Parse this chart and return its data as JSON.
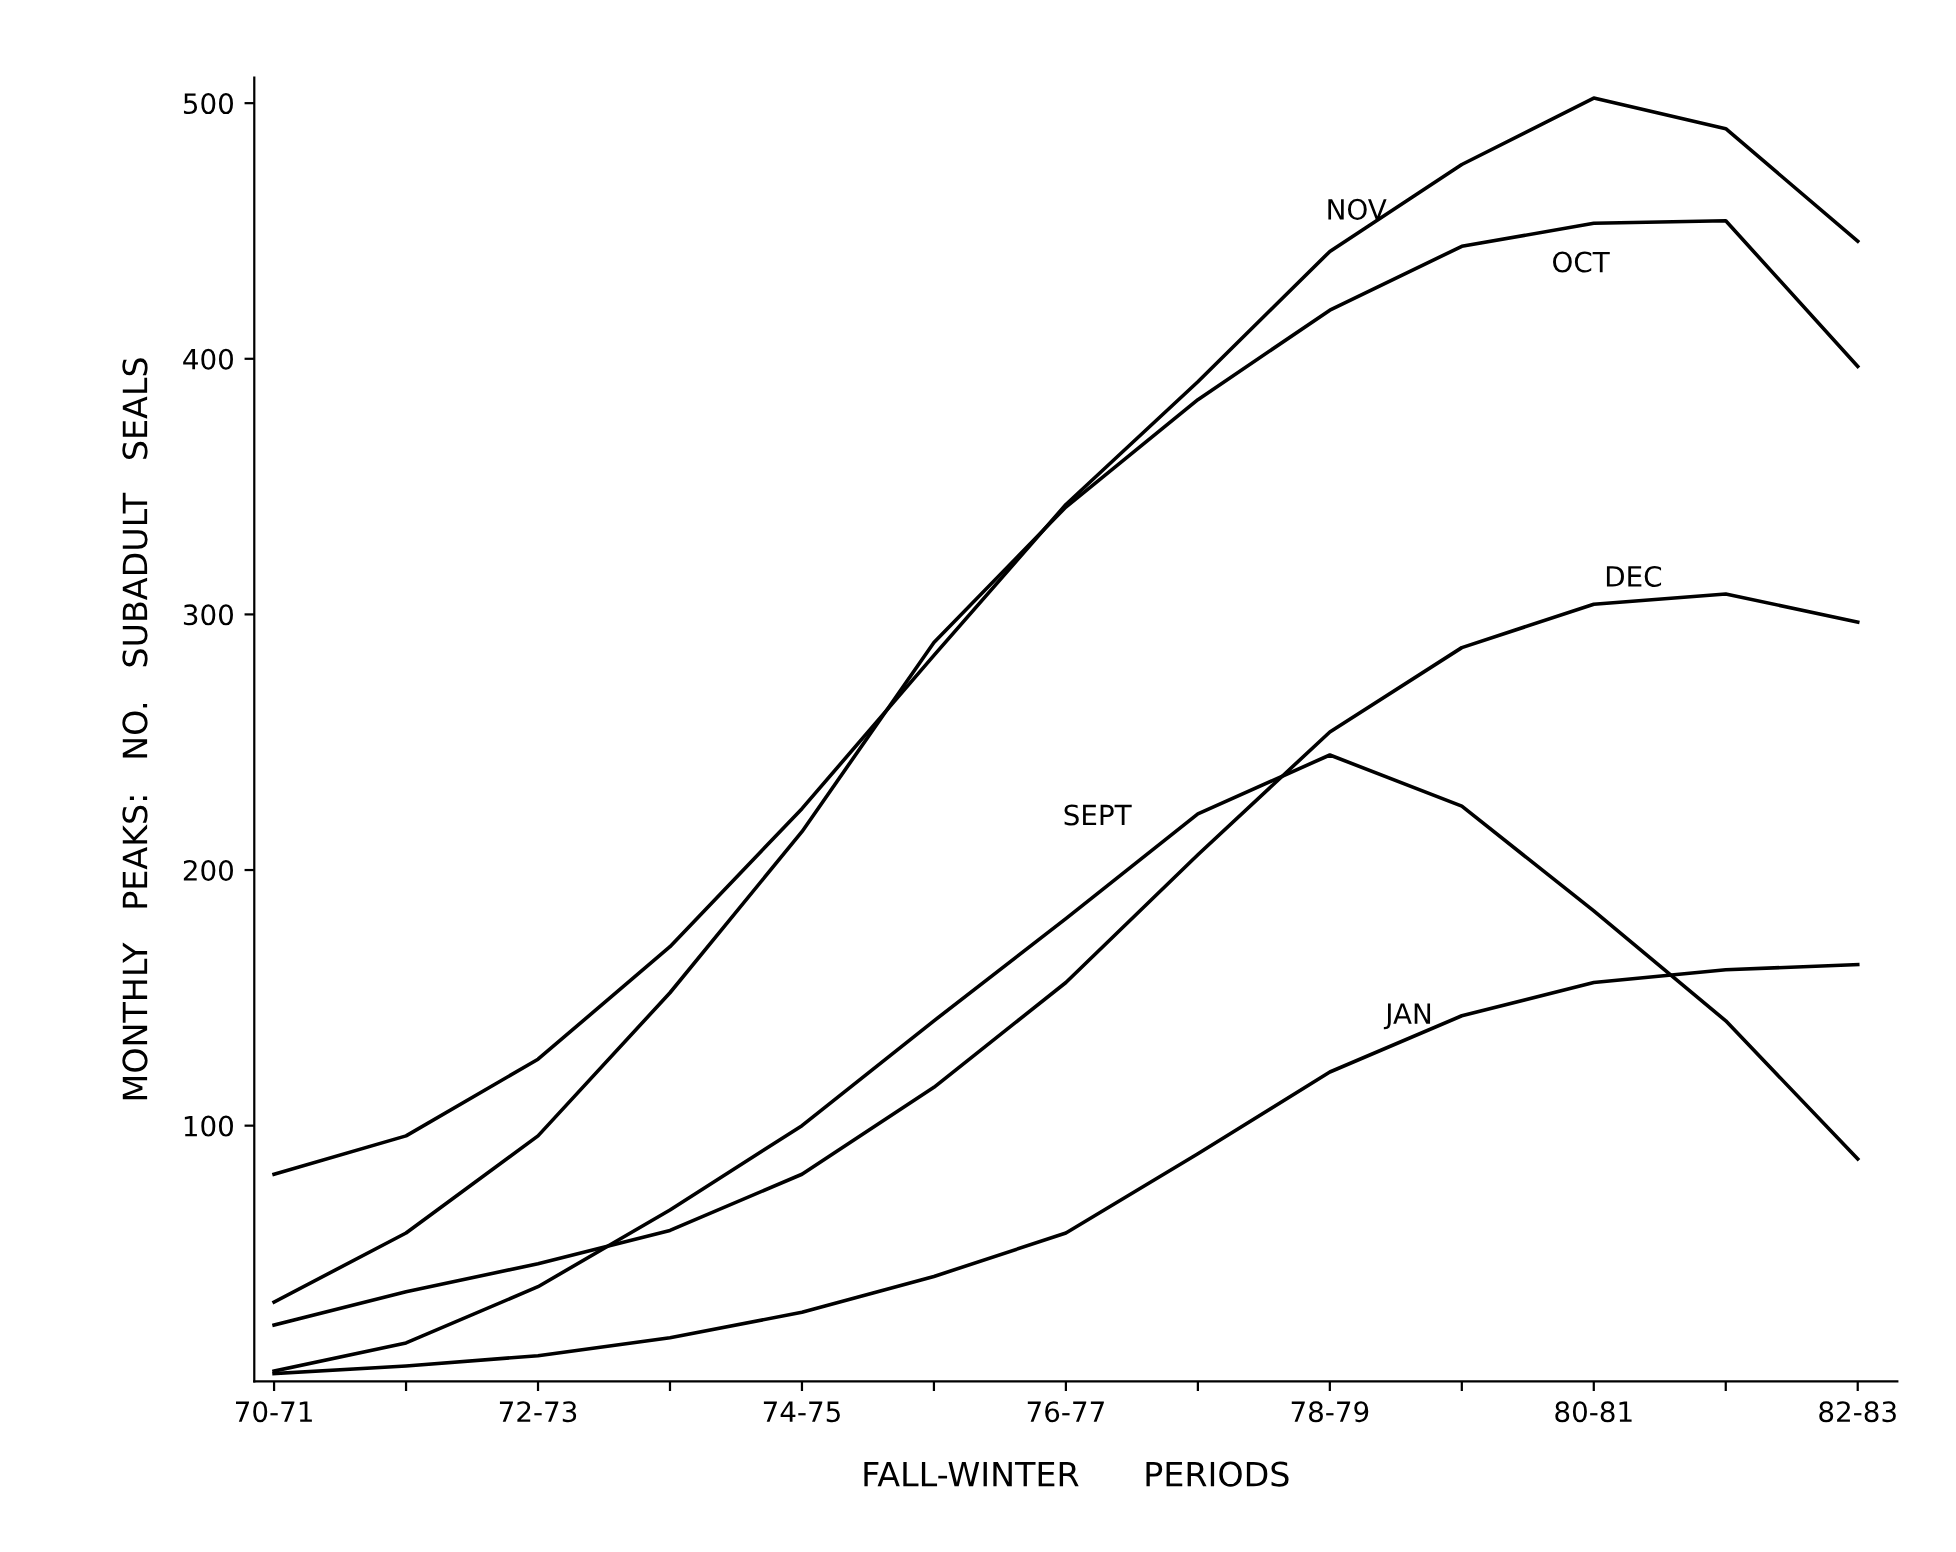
{
  "chart_data": {
    "type": "line",
    "categories": [
      "70-71",
      null,
      "72-73",
      null,
      "74-75",
      null,
      "76-77",
      null,
      "78-79",
      null,
      "80-81",
      null,
      "82-83"
    ],
    "series": [
      {
        "name": "NOV",
        "color": "#000000",
        "values": [
          81,
          96,
          126,
          170,
          224,
          284,
          343,
          391,
          442,
          476,
          502,
          490,
          446
        ]
      },
      {
        "name": "OCT",
        "color": "#000000",
        "values": [
          31,
          58,
          96,
          152,
          215,
          289,
          342,
          384,
          419,
          444,
          453,
          454,
          397
        ]
      },
      {
        "name": "DEC",
        "color": "#000000",
        "values": [
          22,
          35,
          46,
          59,
          81,
          115,
          156,
          206,
          254,
          287,
          304,
          308,
          297
        ]
      },
      {
        "name": "SEPT",
        "color": "#000000",
        "values": [
          4,
          15,
          37,
          67,
          100,
          141,
          181,
          222,
          245,
          225,
          184,
          141,
          87
        ]
      },
      {
        "name": "JAN",
        "color": "#000000",
        "values": [
          3,
          6,
          10,
          17,
          27,
          41,
          58,
          89,
          121,
          143,
          156,
          161,
          163
        ]
      }
    ],
    "xlabel": "FALL-WINTER      PERIODS",
    "ylabel": "MONTHLY   PEAKS:   NO.   SUBADULT   SEALS",
    "ylim": [
      0,
      510
    ],
    "yticks": [
      100,
      200,
      300,
      400,
      500
    ],
    "grid": false,
    "legend": false,
    "marker": "none",
    "line_style": "solid"
  }
}
